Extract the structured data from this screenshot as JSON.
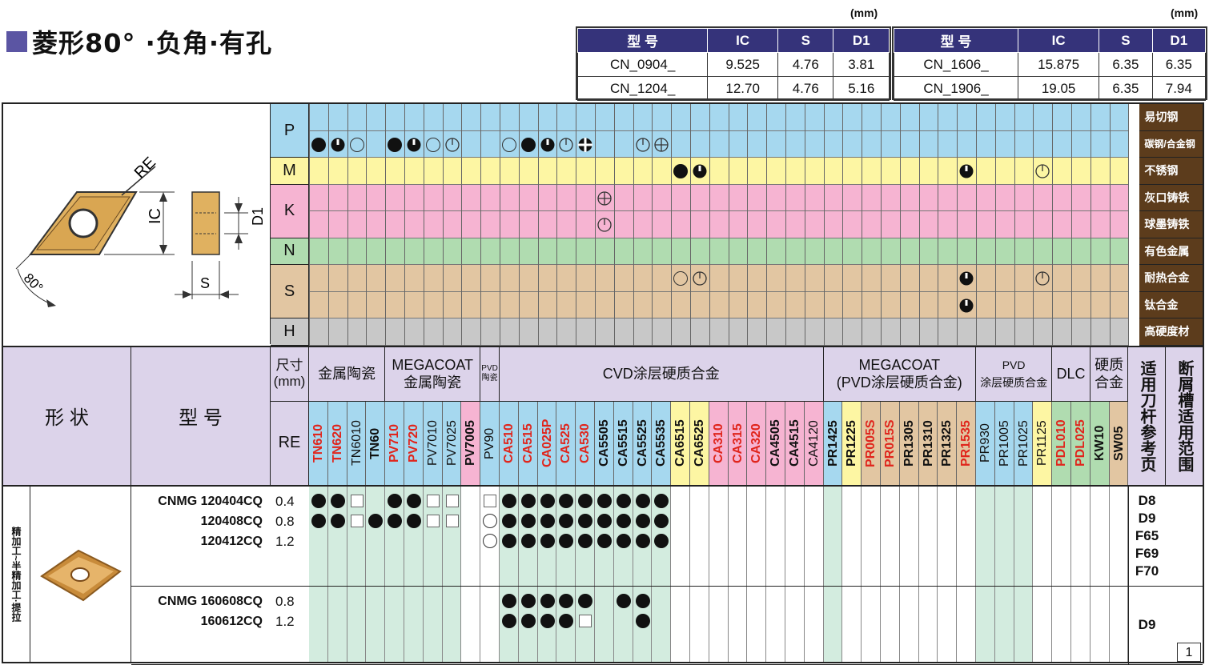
{
  "title": "菱形80° ·负角·有孔",
  "units_label": "(mm)",
  "dims_left": {
    "headers": [
      "型 号",
      "IC",
      "S",
      "D1"
    ],
    "rows": [
      [
        "CN_0904_",
        "9.525",
        "4.76",
        "3.81"
      ],
      [
        "CN_1204_",
        "12.70",
        "4.76",
        "5.16"
      ]
    ]
  },
  "dims_right": {
    "headers": [
      "型 号",
      "IC",
      "S",
      "D1"
    ],
    "rows": [
      [
        "CN_1606_",
        "15.875",
        "6.35",
        "6.35"
      ],
      [
        "CN_1906_",
        "19.05",
        "6.35",
        "7.94"
      ]
    ]
  },
  "drawing_labels": {
    "re": "RE",
    "ic": "IC",
    "d1": "D1",
    "s": "S",
    "angle": "80°"
  },
  "materials": [
    {
      "code": "P",
      "rows": [
        "易切钢",
        "碳钢/合金钢"
      ],
      "color": "#a6d8ef"
    },
    {
      "code": "M",
      "rows": [
        "不锈钢"
      ],
      "color": "#fdf6a3"
    },
    {
      "code": "K",
      "rows": [
        "灰口铸铁",
        "球墨铸铁"
      ],
      "color": "#f6b4d2"
    },
    {
      "code": "N",
      "rows": [
        "有色金属"
      ],
      "color": "#b0dcb0"
    },
    {
      "code": "S",
      "rows": [
        "耐热合金",
        "钛合金"
      ],
      "color": "#e2c6a2"
    },
    {
      "code": "H",
      "rows": [
        "高硬度材"
      ],
      "color": "#c8c8c8"
    }
  ],
  "header": {
    "shape": "形 状",
    "model": "型 号",
    "size": "尺寸\n(mm)",
    "re": "RE",
    "toolholder_page": "适用刀杆参考页",
    "chipbreaker": "断屑槽适用范围"
  },
  "groups": [
    {
      "label": "金属陶瓷",
      "span": 4
    },
    {
      "label": "MEGACOAT\n金属陶瓷",
      "span": 5
    },
    {
      "label": "PVD\n陶瓷",
      "span": 1
    },
    {
      "label": "CVD涂层硬质合金",
      "span": 17
    },
    {
      "label": "MEGACOAT\n(PVD涂层硬质合金)",
      "span": 8
    },
    {
      "label": "PVD\n涂层硬质合金",
      "span": 4
    },
    {
      "label": "DLC",
      "span": 2
    },
    {
      "label": "硬质\n合金",
      "span": 2
    }
  ],
  "grades": [
    {
      "name": "TN610",
      "color": "red",
      "bg": "#a6d8ef"
    },
    {
      "name": "TN620",
      "color": "red",
      "bg": "#a6d8ef"
    },
    {
      "name": "TN6010",
      "color": "black-light",
      "bg": "#a6d8ef"
    },
    {
      "name": "TN60",
      "color": "black",
      "bg": "#a6d8ef"
    },
    {
      "name": "PV710",
      "color": "red",
      "bg": "#a6d8ef"
    },
    {
      "name": "PV720",
      "color": "red",
      "bg": "#a6d8ef"
    },
    {
      "name": "PV7010",
      "color": "black-light",
      "bg": "#a6d8ef"
    },
    {
      "name": "PV7025",
      "color": "black-light",
      "bg": "#a6d8ef"
    },
    {
      "name": "PV7005",
      "color": "black",
      "bg": "#f6b4d2"
    },
    {
      "name": "PV90",
      "color": "black-light",
      "bg": "#a6d8ef"
    },
    {
      "name": "CA510",
      "color": "red",
      "bg": "#a6d8ef"
    },
    {
      "name": "CA515",
      "color": "red",
      "bg": "#a6d8ef"
    },
    {
      "name": "CA025P",
      "color": "red",
      "bg": "#a6d8ef"
    },
    {
      "name": "CA525",
      "color": "red",
      "bg": "#a6d8ef"
    },
    {
      "name": "CA530",
      "color": "red",
      "bg": "#a6d8ef"
    },
    {
      "name": "CA5505",
      "color": "black",
      "bg": "#a6d8ef"
    },
    {
      "name": "CA5515",
      "color": "black",
      "bg": "#a6d8ef"
    },
    {
      "name": "CA5525",
      "color": "black",
      "bg": "#a6d8ef"
    },
    {
      "name": "CA5535",
      "color": "black",
      "bg": "#a6d8ef"
    },
    {
      "name": "CA6515",
      "color": "black",
      "bg": "#fdf6a3"
    },
    {
      "name": "CA6525",
      "color": "black",
      "bg": "#fdf6a3"
    },
    {
      "name": "CA310",
      "color": "red",
      "bg": "#f6b4d2"
    },
    {
      "name": "CA315",
      "color": "red",
      "bg": "#f6b4d2"
    },
    {
      "name": "CA320",
      "color": "red",
      "bg": "#f6b4d2"
    },
    {
      "name": "CA4505",
      "color": "black",
      "bg": "#f6b4d2"
    },
    {
      "name": "CA4515",
      "color": "black",
      "bg": "#f6b4d2"
    },
    {
      "name": "CA4120",
      "color": "black-light",
      "bg": "#f6b4d2"
    },
    {
      "name": "PR1425",
      "color": "black",
      "bg": "#a6d8ef"
    },
    {
      "name": "PR1225",
      "color": "black",
      "bg": "#fdf6a3"
    },
    {
      "name": "PR005S",
      "color": "red",
      "bg": "#e2c6a2"
    },
    {
      "name": "PR015S",
      "color": "red",
      "bg": "#e2c6a2"
    },
    {
      "name": "PR1305",
      "color": "black",
      "bg": "#e2c6a2"
    },
    {
      "name": "PR1310",
      "color": "black",
      "bg": "#e2c6a2"
    },
    {
      "name": "PR1325",
      "color": "black",
      "bg": "#e2c6a2"
    },
    {
      "name": "PR1535",
      "color": "red",
      "bg": "#e2c6a2"
    },
    {
      "name": "PR930",
      "color": "black-light",
      "bg": "#a6d8ef"
    },
    {
      "name": "PR1005",
      "color": "black-light",
      "bg": "#a6d8ef"
    },
    {
      "name": "PR1025",
      "color": "black-light",
      "bg": "#a6d8ef"
    },
    {
      "name": "PR1125",
      "color": "black-light",
      "bg": "#fdf6a3"
    },
    {
      "name": "PDL010",
      "color": "red",
      "bg": "#b0dcb0"
    },
    {
      "name": "PDL025",
      "color": "red",
      "bg": "#b0dcb0"
    },
    {
      "name": "KW10",
      "color": "black",
      "bg": "#b0dcb0"
    },
    {
      "name": "SW05",
      "color": "black",
      "bg": "#e2c6a2"
    }
  ],
  "application_label": "精加工~半精加工·提拉",
  "product_groups": [
    {
      "items": [
        {
          "model": "CNMG 120404CQ",
          "re": "0.4",
          "marks": [
            "dot",
            "dot",
            "sq",
            "",
            "dot",
            "dot",
            "sq",
            "sq",
            "",
            "sq",
            "dot",
            "dot",
            "dot",
            "dot",
            "dot",
            "dot",
            "dot",
            "dot",
            "dot"
          ]
        },
        {
          "model": "120408CQ",
          "re": "0.8",
          "marks": [
            "dot",
            "dot",
            "sq",
            "dot",
            "dot",
            "dot",
            "sq",
            "sq",
            "",
            "ring",
            "dot",
            "dot",
            "dot",
            "dot",
            "dot",
            "dot",
            "dot",
            "dot",
            "dot"
          ]
        },
        {
          "model": "120412CQ",
          "re": "1.2",
          "marks": [
            "",
            "",
            "",
            "",
            "",
            "",
            "",
            "",
            "",
            "ring",
            "dot",
            "dot",
            "dot",
            "dot",
            "dot",
            "dot",
            "dot",
            "dot",
            "dot"
          ]
        }
      ],
      "pages": [
        "D8",
        "D9",
        "F65",
        "F69",
        "F70"
      ]
    },
    {
      "items": [
        {
          "model": "CNMG 160608CQ",
          "re": "0.8",
          "marks": [
            "",
            "",
            "",
            "",
            "",
            "",
            "",
            "",
            "",
            "",
            "dot",
            "dot",
            "dot",
            "dot",
            "dot",
            "",
            "dot",
            "dot"
          ]
        },
        {
          "model": "160612CQ",
          "re": "1.2",
          "marks": [
            "",
            "",
            "",
            "",
            "",
            "",
            "",
            "",
            "",
            "",
            "dot",
            "dot",
            "dot",
            "dot",
            "sq",
            "",
            "",
            "dot"
          ]
        }
      ],
      "pages": [
        "D9"
      ]
    }
  ],
  "corner_number": "1",
  "application_marks": {
    "P2": [
      [
        0,
        "dot"
      ],
      [
        1,
        "half"
      ],
      [
        2,
        "ring"
      ],
      [
        4,
        "dot"
      ],
      [
        5,
        "half"
      ],
      [
        6,
        "ring"
      ],
      [
        7,
        "ringd"
      ],
      [
        10,
        "ring"
      ],
      [
        11,
        "dot"
      ],
      [
        12,
        "half"
      ],
      [
        13,
        "ringd"
      ],
      [
        14,
        "cross"
      ],
      [
        17,
        "ringd"
      ],
      [
        18,
        "ringc"
      ]
    ],
    "M": [
      [
        19,
        "dot"
      ],
      [
        20,
        "half"
      ],
      [
        34,
        "half"
      ],
      [
        38,
        "ringd"
      ]
    ],
    "K1": [
      [
        15,
        "ringc"
      ]
    ],
    "K2": [
      [
        15,
        "ringd"
      ]
    ],
    "S1": [
      [
        19,
        "ring"
      ],
      [
        20,
        "ringd"
      ],
      [
        34,
        "half"
      ],
      [
        38,
        "ringd"
      ]
    ],
    "S2": [
      [
        34,
        "half"
      ]
    ]
  }
}
